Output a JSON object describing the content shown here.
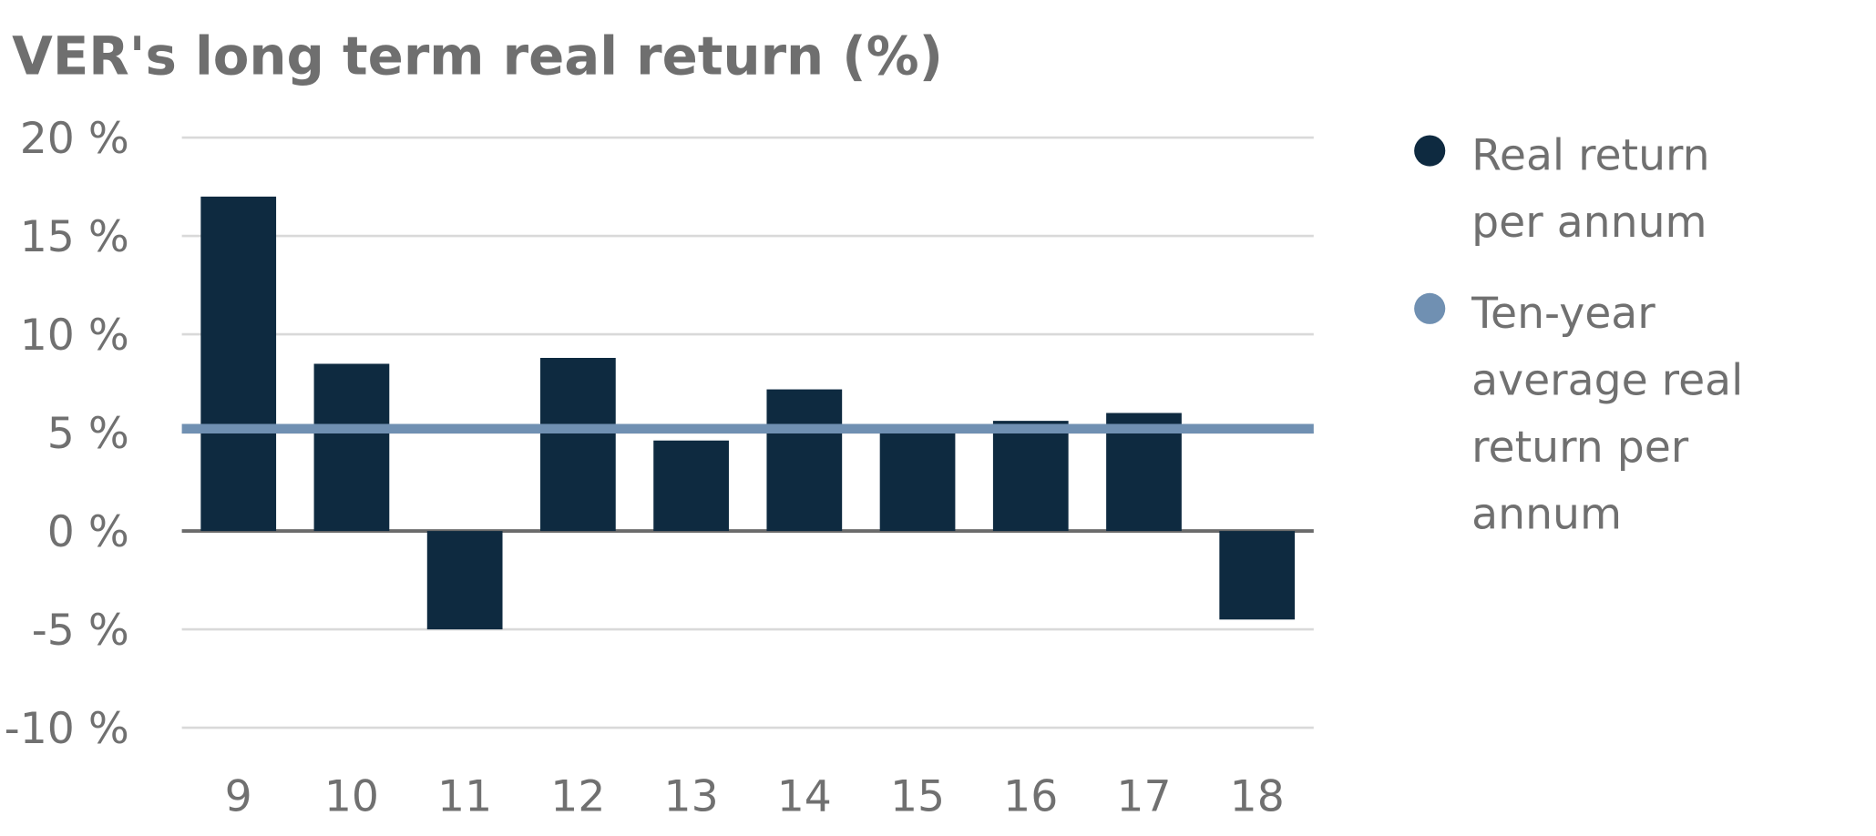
{
  "chart_data": {
    "type": "bar",
    "title": "VER's long term real return (%)",
    "xlabel": "",
    "ylabel": "",
    "categories": [
      "9",
      "10",
      "11",
      "12",
      "13",
      "14",
      "15",
      "16",
      "17",
      "18"
    ],
    "series": [
      {
        "name": "Real return per annum",
        "values": [
          17.0,
          8.5,
          -5.0,
          8.8,
          4.6,
          7.2,
          5.0,
          5.6,
          6.0,
          -4.5
        ],
        "color": "#0e2a40"
      },
      {
        "name": "Ten-year average real return per annum",
        "type": "line",
        "value": 5.2,
        "color": "#7090b2"
      }
    ],
    "ylim": [
      -10,
      20
    ],
    "yticks": [
      20,
      15,
      10,
      5,
      0,
      -5,
      -10
    ],
    "ytick_labels": [
      "20 %",
      "15 %",
      "10 %",
      "5 %",
      "0 %",
      "-5 %",
      "-10 %"
    ],
    "grid": true,
    "legend_position": "right",
    "legend": [
      {
        "lines": [
          "Real return",
          "per annum"
        ],
        "color": "#0e2a40"
      },
      {
        "lines": [
          "Ten-year",
          "average real",
          "return per",
          "annum"
        ],
        "color": "#7090b2"
      }
    ]
  }
}
